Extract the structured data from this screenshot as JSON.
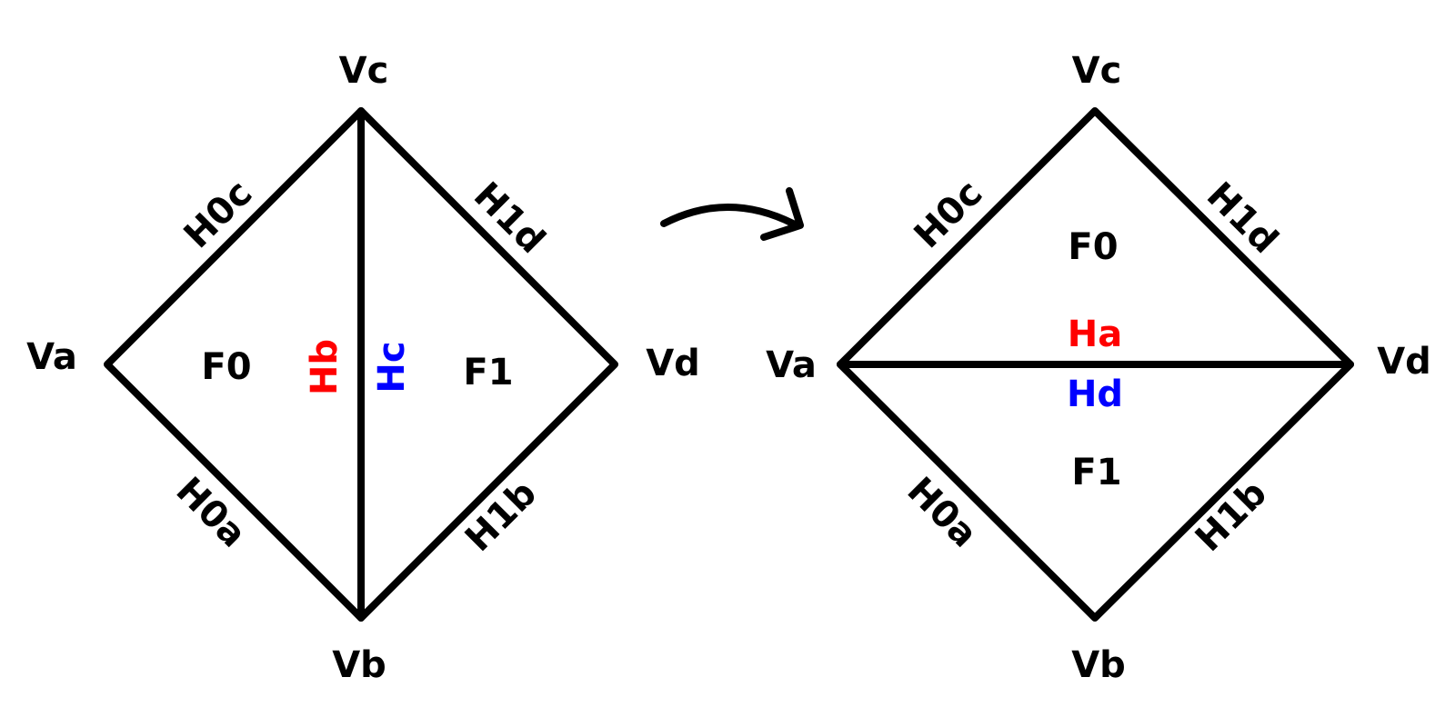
{
  "colors": {
    "stroke": "#000000",
    "text": "#000000",
    "red": "#ff0000",
    "blue": "#0000ff"
  },
  "left": {
    "vertices": {
      "va": "Va",
      "vb": "Vb",
      "vc": "Vc",
      "vd": "Vd"
    },
    "faces": {
      "f0": "F0",
      "f1": "F1"
    },
    "edges": {
      "h0c": "H0c",
      "h1d": "H1d",
      "h0a": "H0a",
      "h1b": "H1b"
    },
    "diagonal": {
      "hb": "Hb",
      "hc": "Hc"
    }
  },
  "right": {
    "vertices": {
      "va": "Va",
      "vb": "Vb",
      "vc": "Vc",
      "vd": "Vd"
    },
    "faces": {
      "f0": "F0",
      "f1": "F1"
    },
    "edges": {
      "h0c": "H0c",
      "h1d": "H1d",
      "h0a": "H0a",
      "h1b": "H1b"
    },
    "diagonal": {
      "ha": "Ha",
      "hd": "Hd"
    }
  },
  "arrow": {
    "icon": "curved-arrow-right-icon"
  }
}
